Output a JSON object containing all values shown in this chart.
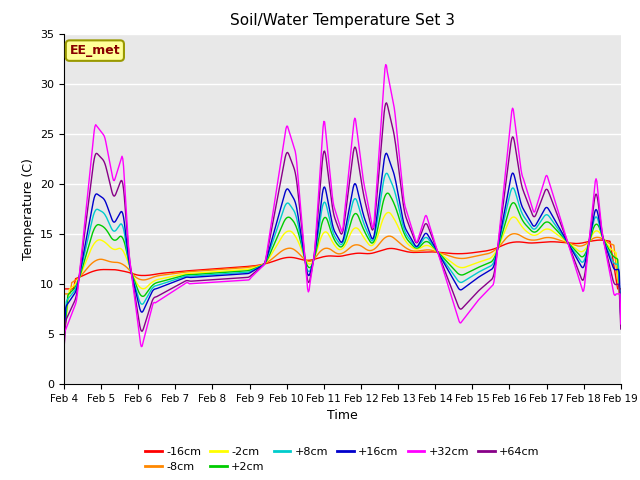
{
  "title": "Soil/Water Temperature Set 3",
  "xlabel": "Time",
  "ylabel": "Temperature (C)",
  "ylim": [
    0,
    35
  ],
  "xlim": [
    0,
    360
  ],
  "x_tick_labels": [
    "Feb 4",
    "Feb 5",
    "Feb 6",
    "Feb 7",
    "Feb 8",
    "Feb 9",
    "Feb 10",
    "Feb 11",
    "Feb 12",
    "Feb 13",
    "Feb 14",
    "Feb 15",
    "Feb 16",
    "Feb 17",
    "Feb 18",
    "Feb 19"
  ],
  "x_tick_positions": [
    0,
    24,
    48,
    72,
    96,
    120,
    144,
    168,
    192,
    216,
    240,
    264,
    288,
    312,
    336,
    360
  ],
  "y_ticks": [
    0,
    5,
    10,
    15,
    20,
    25,
    30,
    35
  ],
  "series_colors": {
    "-16cm": "#ff0000",
    "-8cm": "#ff8800",
    "-2cm": "#ffff00",
    "+2cm": "#00cc00",
    "+8cm": "#00cccc",
    "+16cm": "#0000cc",
    "+32cm": "#ff00ff",
    "+64cm": "#880088"
  },
  "bg_color": "#e8e8e8",
  "annotation_text": "EE_met",
  "annotation_box_color": "#ffff99",
  "annotation_text_color": "#880000",
  "annotation_border_color": "#999900"
}
